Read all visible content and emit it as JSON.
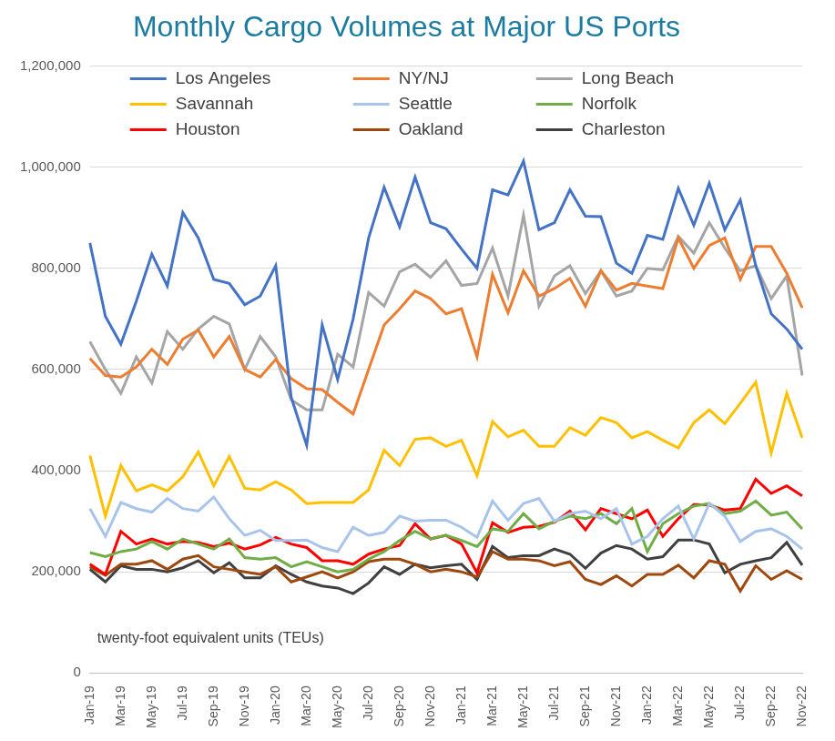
{
  "chart_data": {
    "type": "line",
    "title": "Monthly Cargo Volumes at Major US Ports",
    "ylabel": "twenty-foot equivalent units (TEUs)",
    "categories": [
      "Jan-19",
      null,
      "Mar-19",
      null,
      "May-19",
      null,
      "Jul-19",
      null,
      "Sep-19",
      null,
      "Nov-19",
      null,
      "Jan-20",
      null,
      "Mar-20",
      null,
      "May-20",
      null,
      "Jul-20",
      null,
      "Sep-20",
      null,
      "Nov-20",
      null,
      "Jan-21",
      null,
      "Mar-21",
      null,
      "May-21",
      null,
      "Jul-21",
      null,
      "Sep-21",
      null,
      "Nov-21",
      null,
      "Jan-22",
      null,
      "Mar-22",
      null,
      "May-22",
      null,
      "Jul-22",
      null,
      "Sep-22",
      null,
      "Nov-22"
    ],
    "series": [
      {
        "name": "Los Angeles",
        "color": "#4472c4",
        "values": [
          850000,
          705000,
          650000,
          735000,
          828000,
          765000,
          910000,
          860000,
          778000,
          770000,
          728000,
          745000,
          805000,
          545000,
          450000,
          688000,
          580000,
          700000,
          860000,
          960000,
          882000,
          980000,
          890000,
          878000,
          838000,
          800000,
          955000,
          945000,
          1012000,
          876000,
          890000,
          955000,
          903000,
          902000,
          810000,
          790000,
          865000,
          857000,
          958000,
          885000,
          968000,
          876000,
          935000,
          805000,
          710000,
          680000,
          640000
        ]
      },
      {
        "name": "NY/NJ",
        "color": "#ed7d31",
        "values": [
          622000,
          588000,
          585000,
          605000,
          640000,
          610000,
          660000,
          678000,
          625000,
          665000,
          600000,
          585000,
          620000,
          582000,
          562000,
          560000,
          535000,
          512000,
          600000,
          688000,
          720000,
          755000,
          740000,
          710000,
          720000,
          625000,
          788000,
          712000,
          795000,
          745000,
          760000,
          780000,
          725000,
          795000,
          757000,
          770000,
          765000,
          760000,
          860000,
          800000,
          845000,
          860000,
          778000,
          843000,
          843000,
          790000,
          722000
        ]
      },
      {
        "name": "Long Beach",
        "color": "#a5a5a5",
        "values": [
          655000,
          600000,
          553000,
          625000,
          573000,
          675000,
          640000,
          680000,
          705000,
          690000,
          600000,
          665000,
          625000,
          540000,
          520000,
          520000,
          630000,
          605000,
          752000,
          725000,
          793000,
          808000,
          782000,
          815000,
          766000,
          770000,
          840000,
          745000,
          905000,
          725000,
          785000,
          805000,
          750000,
          795000,
          745000,
          755000,
          800000,
          797000,
          863000,
          830000,
          890000,
          840000,
          795000,
          805000,
          740000,
          785000,
          588000
        ]
      },
      {
        "name": "Savannah",
        "color": "#ffc000",
        "values": [
          430000,
          310000,
          410000,
          360000,
          372000,
          360000,
          388000,
          437000,
          370000,
          428000,
          365000,
          362000,
          378000,
          362000,
          335000,
          337000,
          337000,
          337000,
          362000,
          440000,
          410000,
          462000,
          465000,
          448000,
          460000,
          390000,
          497000,
          467000,
          480000,
          448000,
          448000,
          485000,
          470000,
          505000,
          495000,
          465000,
          477000,
          460000,
          445000,
          495000,
          520000,
          493000,
          533000,
          575000,
          435000,
          553000,
          465000
        ]
      },
      {
        "name": "Seattle",
        "color": "#a9c4eb",
        "values": [
          325000,
          270000,
          337000,
          325000,
          318000,
          345000,
          325000,
          320000,
          348000,
          305000,
          272000,
          282000,
          262000,
          262000,
          263000,
          248000,
          240000,
          288000,
          272000,
          278000,
          310000,
          300000,
          302000,
          302000,
          288000,
          268000,
          340000,
          302000,
          335000,
          345000,
          300000,
          315000,
          320000,
          305000,
          325000,
          255000,
          270000,
          305000,
          330000,
          265000,
          335000,
          310000,
          260000,
          280000,
          285000,
          270000,
          245000
        ]
      },
      {
        "name": "Norfolk",
        "color": "#70ad47",
        "values": [
          238000,
          230000,
          240000,
          245000,
          260000,
          245000,
          265000,
          255000,
          245000,
          265000,
          228000,
          225000,
          228000,
          210000,
          220000,
          210000,
          200000,
          205000,
          225000,
          240000,
          262000,
          280000,
          265000,
          272000,
          262000,
          250000,
          285000,
          280000,
          315000,
          285000,
          300000,
          310000,
          305000,
          315000,
          295000,
          325000,
          240000,
          295000,
          315000,
          330000,
          335000,
          315000,
          320000,
          340000,
          312000,
          318000,
          285000
        ]
      },
      {
        "name": "Houston",
        "color": "#ff0000",
        "values": [
          215000,
          195000,
          280000,
          255000,
          265000,
          255000,
          260000,
          258000,
          250000,
          257000,
          245000,
          253000,
          268000,
          255000,
          248000,
          222000,
          222000,
          215000,
          235000,
          245000,
          252000,
          295000,
          265000,
          272000,
          255000,
          198000,
          297000,
          278000,
          288000,
          290000,
          298000,
          320000,
          283000,
          325000,
          315000,
          305000,
          322000,
          270000,
          305000,
          333000,
          332000,
          322000,
          325000,
          383000,
          355000,
          370000,
          350000
        ]
      },
      {
        "name": "Oakland",
        "color": "#9e480e",
        "values": [
          210000,
          193000,
          215000,
          215000,
          222000,
          205000,
          225000,
          232000,
          210000,
          205000,
          200000,
          195000,
          210000,
          180000,
          190000,
          200000,
          188000,
          200000,
          220000,
          225000,
          225000,
          215000,
          200000,
          205000,
          200000,
          190000,
          240000,
          225000,
          225000,
          222000,
          212000,
          220000,
          185000,
          175000,
          192000,
          172000,
          195000,
          195000,
          213000,
          188000,
          222000,
          215000,
          162000,
          212000,
          185000,
          202000,
          185000
        ]
      },
      {
        "name": "Charleston",
        "color": "#404040",
        "values": [
          205000,
          180000,
          212000,
          205000,
          205000,
          200000,
          208000,
          222000,
          198000,
          218000,
          188000,
          188000,
          212000,
          195000,
          180000,
          172000,
          168000,
          157000,
          178000,
          210000,
          195000,
          215000,
          208000,
          212000,
          215000,
          185000,
          250000,
          228000,
          232000,
          232000,
          245000,
          235000,
          207000,
          237000,
          252000,
          245000,
          225000,
          230000,
          263000,
          263000,
          255000,
          198000,
          215000,
          222000,
          228000,
          258000,
          213000
        ]
      }
    ],
    "ylim": [
      0,
      1200000
    ],
    "yticks": [
      0,
      {
        "value": 200000,
        "label": "200,000"
      },
      {
        "value": 400000,
        "label": "400,000"
      },
      {
        "value": 600000,
        "label": "600,000"
      },
      {
        "value": 800000,
        "label": "800,000"
      },
      {
        "value": 1000000,
        "label": "1,000,000"
      },
      {
        "value": 1200000,
        "label": "1,200,000"
      }
    ],
    "grid": true,
    "legend": "top"
  }
}
